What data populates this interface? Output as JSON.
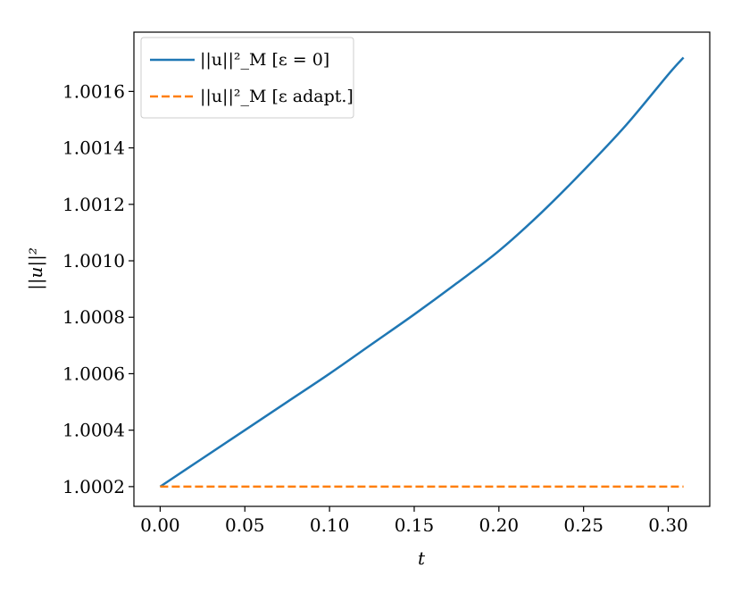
{
  "chart_data": {
    "type": "line",
    "xlabel": "t",
    "ylabel": "||u||²",
    "xlim": [
      -0.0155,
      0.3245
    ],
    "ylim": [
      1.00013,
      1.00181
    ],
    "xticks": [
      0.0,
      0.05,
      0.1,
      0.15,
      0.2,
      0.25,
      0.3
    ],
    "xtick_labels": [
      "0.00",
      "0.05",
      "0.10",
      "0.15",
      "0.20",
      "0.25",
      "0.30"
    ],
    "yticks": [
      1.0002,
      1.0004,
      1.0006,
      1.0008,
      1.001,
      1.0012,
      1.0014,
      1.0016
    ],
    "ytick_labels": [
      "1.0002",
      "1.0004",
      "1.0006",
      "1.0008",
      "1.0010",
      "1.0012",
      "1.0014",
      "1.0016"
    ],
    "grid": false,
    "legend_position": "top-left",
    "series": [
      {
        "name": "||u||²_M [ε = 0]",
        "color": "#1f77b4",
        "style": "solid",
        "x": [
          0.0,
          0.025,
          0.05,
          0.075,
          0.1,
          0.125,
          0.15,
          0.175,
          0.2,
          0.225,
          0.25,
          0.275,
          0.3,
          0.309
        ],
        "y": [
          1.0002,
          1.0003,
          1.0004,
          1.0005,
          1.0006,
          1.000705,
          1.00081,
          1.00092,
          1.001035,
          1.00117,
          1.00132,
          1.00148,
          1.00166,
          1.00172
        ]
      },
      {
        "name": "||u||²_M [ε adapt.]",
        "color": "#ff7f0e",
        "style": "dashed",
        "x": [
          0.0,
          0.309
        ],
        "y": [
          1.0002,
          1.0002
        ]
      }
    ]
  }
}
